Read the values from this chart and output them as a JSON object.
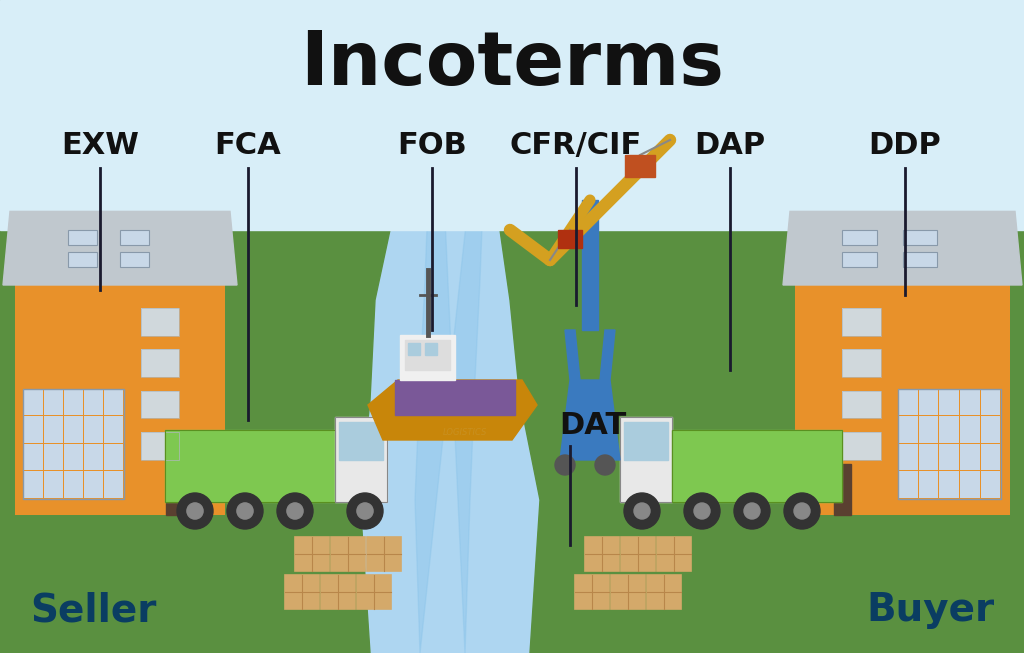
{
  "title": "Incoterms",
  "title_fontsize": 54,
  "title_fontweight": "bold",
  "title_color": "#111111",
  "bg_sky": "#d8eef8",
  "bg_ground": "#5a9040",
  "water_color": "#aed6f1",
  "water_edge": "#85c1e9",
  "seller_label": "Seller",
  "buyer_label": "Buyer",
  "seller_buyer_color": "#0a3d62",
  "seller_buyer_fontsize": 28,
  "seller_buyer_fontweight": "bold",
  "labels": [
    "EXW",
    "FCA",
    "FOB",
    "CFR/CIF",
    "DAP",
    "DDP"
  ],
  "label_fontsize": 22,
  "label_fontweight": "bold",
  "label_color": "#111111",
  "building_wall_color": "#e8912a",
  "building_roof_color": "#c0c8ce",
  "building_window_color": "#c8d8e8",
  "building_door_color": "#5a4030",
  "truck_green": "#7ec850",
  "truck_cab": "#e8e8e8",
  "box_color": "#d4a96a",
  "box_edge": "#b8864a",
  "ship_hull": "#c8860a",
  "ship_cargo": "#7a5898",
  "ship_super": "#f0f0f0",
  "crane_arm": "#d4a020",
  "crane_base": "#3a7abf",
  "crane_hook": "#c05020"
}
